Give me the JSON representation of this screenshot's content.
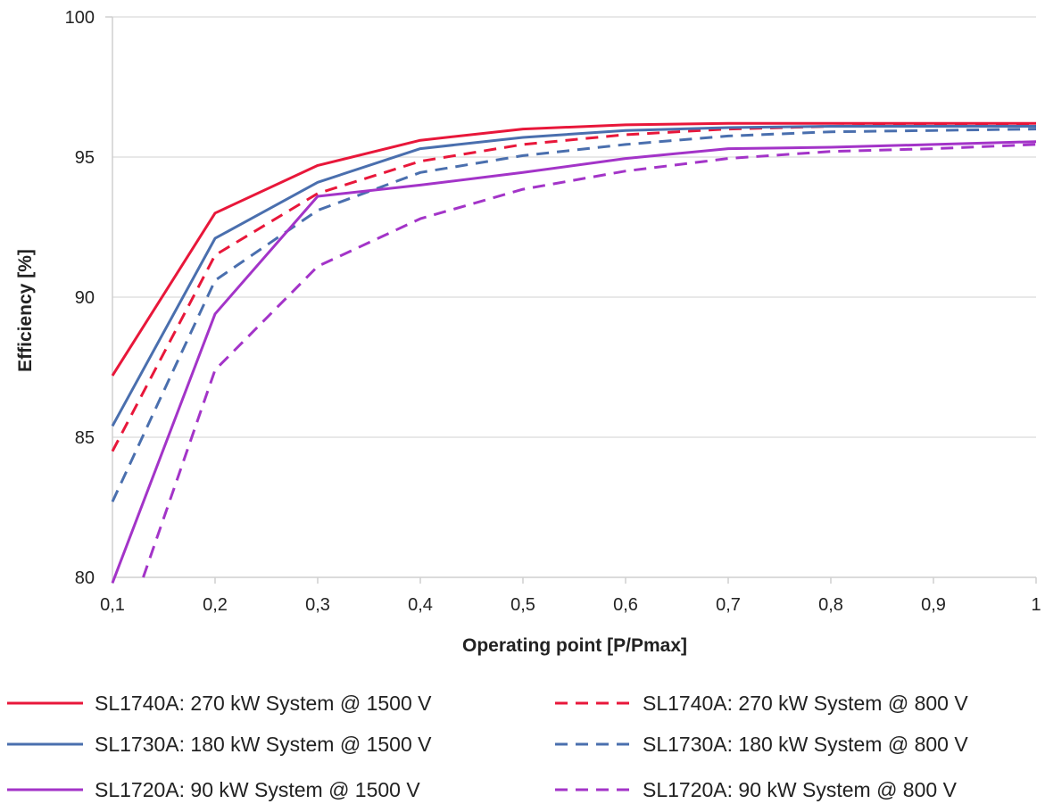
{
  "chart_data": {
    "type": "line",
    "xlabel": "Operating point [P/Pmax]",
    "ylabel": "Efficiency [%]",
    "xlim": [
      0.1,
      1.0
    ],
    "ylim": [
      80,
      100
    ],
    "x": [
      0.1,
      0.2,
      0.3,
      0.4,
      0.5,
      0.6,
      0.7,
      0.8,
      0.9,
      1.0
    ],
    "x_tick_labels": [
      "0,1",
      "0,2",
      "0,3",
      "0,4",
      "0,5",
      "0,6",
      "0,7",
      "0,8",
      "0,9",
      "1"
    ],
    "y_ticks": [
      80,
      85,
      90,
      95,
      100
    ],
    "y_tick_labels": [
      "80",
      "85",
      "90",
      "95",
      "100"
    ],
    "grid": "horizontal",
    "legend_position": "bottom",
    "series": [
      {
        "name": "SL1740A: 270 kW System @ 1500 V",
        "color": "#e8173a",
        "dash": "solid",
        "values": [
          87.2,
          93.0,
          94.7,
          95.6,
          96.0,
          96.15,
          96.2,
          96.2,
          96.2,
          96.2
        ]
      },
      {
        "name": "SL1730A: 180 kW System @ 1500 V",
        "color": "#4a6fae",
        "dash": "solid",
        "values": [
          85.4,
          92.1,
          94.1,
          95.3,
          95.7,
          95.95,
          96.05,
          96.1,
          96.1,
          96.1
        ]
      },
      {
        "name": "SL1720A: 90 kW System @ 1500 V",
        "color": "#a334c8",
        "dash": "solid",
        "values": [
          79.8,
          89.4,
          93.6,
          94.0,
          94.45,
          94.95,
          95.3,
          95.35,
          95.45,
          95.55
        ]
      },
      {
        "name": "SL1740A: 270 kW System @ 800 V",
        "color": "#e8173a",
        "dash": "dashed",
        "values": [
          84.5,
          91.5,
          93.7,
          94.85,
          95.45,
          95.8,
          96.0,
          96.1,
          96.15,
          96.15
        ]
      },
      {
        "name": "SL1730A: 180 kW System @ 800 V",
        "color": "#4a6fae",
        "dash": "dashed",
        "values": [
          82.7,
          90.6,
          93.1,
          94.45,
          95.05,
          95.45,
          95.75,
          95.9,
          95.95,
          96.0
        ]
      },
      {
        "name": "SL1720A: 90 kW System @ 800 V",
        "color": "#a334c8",
        "dash": "dashed",
        "values": [
          80.0,
          87.4,
          91.1,
          92.8,
          93.85,
          94.5,
          94.95,
          95.2,
          95.3,
          95.45
        ],
        "first_point_x": 0.13
      }
    ]
  }
}
